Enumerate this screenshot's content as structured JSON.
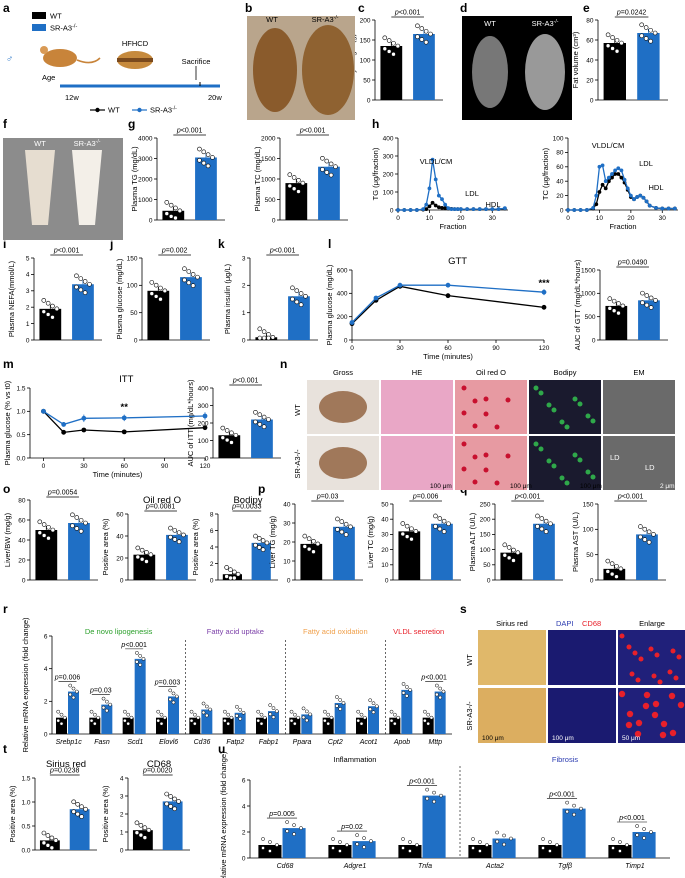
{
  "colors": {
    "wt": "#000000",
    "ko": "#1f6fc5",
    "accent_red": "#e8202a"
  },
  "panel_letters": [
    "a",
    "b",
    "c",
    "d",
    "e",
    "f",
    "g",
    "h",
    "i",
    "j",
    "k",
    "l",
    "m",
    "n",
    "o",
    "p",
    "q",
    "r",
    "s",
    "t",
    "u"
  ],
  "legend": {
    "wt": "WT",
    "ko": "SR-A3",
    "ko_sup": "-/-"
  },
  "scheme": {
    "diet": "HFHCD",
    "sacrifice": "Sacrifice",
    "age": "Age",
    "start": "12w",
    "end": "20w"
  },
  "photo_labels": {
    "wt": "WT",
    "ko": "SR-A3",
    "ko_sup": "-/-"
  },
  "histology": {
    "columns": [
      "Gross",
      "HE",
      "Oil red O",
      "Bodipy",
      "EM"
    ],
    "scale_100": "100 μm",
    "scale_2": "2 μm",
    "ld": "LD",
    "sirius_cols": [
      "Sirius red",
      "DAPI",
      "CD68",
      "Enlarge"
    ],
    "scale_50": "50 μm"
  },
  "charts": [
    {
      "id": "c",
      "type": "bar",
      "ylabel": "Body weight (g)",
      "ylim": [
        0,
        200
      ],
      "yticks": [
        "0",
        "50",
        "100",
        "150",
        "200"
      ],
      "values": [
        135,
        165
      ],
      "p": "p<0.001"
    },
    {
      "id": "e",
      "type": "bar",
      "ylabel": "Fat volume (cm³)",
      "ylim": [
        0,
        80
      ],
      "yticks": [
        "0",
        "20",
        "40",
        "60",
        "80"
      ],
      "values": [
        57,
        67
      ],
      "p": "p=0.0242"
    },
    {
      "id": "g1",
      "type": "bar",
      "ylabel": "Plasma TG (mg/dL)",
      "ylim": [
        0,
        4000
      ],
      "yticks": [
        "0",
        "1000",
        "2000",
        "3000",
        "4000"
      ],
      "values": [
        450,
        3050
      ],
      "p": "p<0.001"
    },
    {
      "id": "g2",
      "type": "bar",
      "ylabel": "Plasma TC (mg/dL)",
      "ylim": [
        0,
        2000
      ],
      "yticks": [
        "0",
        "500",
        "1000",
        "1500",
        "2000"
      ],
      "values": [
        900,
        1300
      ],
      "p": "p<0.001"
    },
    {
      "id": "i",
      "type": "bar",
      "ylabel": "Plasma NEFA(mmol/L)",
      "ylim": [
        0,
        5
      ],
      "yticks": [
        "0",
        "1",
        "2",
        "3",
        "4",
        "5"
      ],
      "values": [
        1.9,
        3.4
      ],
      "p": "p<0.001"
    },
    {
      "id": "j",
      "type": "bar",
      "ylabel": "Plasma glucose (mg/dL)",
      "ylim": [
        0,
        150
      ],
      "yticks": [
        "0",
        "50",
        "100",
        "150"
      ],
      "values": [
        90,
        115
      ],
      "p": "p=0.002"
    },
    {
      "id": "k",
      "type": "bar",
      "ylabel": "Plasma insulin (μg/L)",
      "ylim": [
        0,
        3
      ],
      "yticks": [
        "0",
        "1",
        "2",
        "3"
      ],
      "values": [
        0.1,
        1.6
      ],
      "p": "p<0.001"
    },
    {
      "id": "l2",
      "type": "bar",
      "ylabel": "AUC of GTT (mg/dL*hours)",
      "ylim": [
        0,
        1500
      ],
      "yticks": [
        "0",
        "500",
        "1000",
        "1500"
      ],
      "values": [
        730,
        850
      ],
      "p": "p=0.0490"
    },
    {
      "id": "m2",
      "type": "bar",
      "ylabel": "AUC of ITT (mg/dL*hours)",
      "ylim": [
        0,
        400
      ],
      "yticks": [
        "0",
        "100",
        "200",
        "300",
        "400"
      ],
      "values": [
        130,
        220
      ],
      "p": "p<0.001"
    },
    {
      "id": "o1",
      "type": "bar",
      "ylabel": "Liver/BW (mg/g)",
      "ylim": [
        0,
        80
      ],
      "yticks": [
        "0",
        "20",
        "40",
        "60",
        "80"
      ],
      "values": [
        50,
        57
      ],
      "p": "p=0.0054"
    },
    {
      "id": "o2",
      "type": "bar",
      "title": "Oil red O",
      "ylabel": "Positive area (%)",
      "ylim": [
        0,
        60
      ],
      "yticks": [
        "0",
        "20",
        "40",
        "60"
      ],
      "values": [
        23,
        41
      ],
      "p": "p=0.0081"
    },
    {
      "id": "o3",
      "type": "bar",
      "title": "Bodipy",
      "ylabel": "Positive area (%)",
      "ylim": [
        0,
        8
      ],
      "yticks": [
        "0",
        "2",
        "4",
        "6",
        "8"
      ],
      "values": [
        0.7,
        4.5
      ],
      "p": "p=0.0033"
    },
    {
      "id": "p1",
      "type": "bar",
      "ylabel": "Liver TG (mg/g)",
      "ylim": [
        0,
        40
      ],
      "yticks": [
        "0",
        "10",
        "20",
        "30",
        "40"
      ],
      "values": [
        19,
        28
      ],
      "p": "p=0.03"
    },
    {
      "id": "p2",
      "type": "bar",
      "ylabel": "Liver TC (mg/g)",
      "ylim": [
        0,
        50
      ],
      "yticks": [
        "0",
        "10",
        "20",
        "30",
        "40",
        "50"
      ],
      "values": [
        32,
        37
      ],
      "p": "p=0.006"
    },
    {
      "id": "q1",
      "type": "bar",
      "ylabel": "Plasma ALT (U/L)",
      "ylim": [
        0,
        250
      ],
      "yticks": [
        "0",
        "50",
        "100",
        "150",
        "200",
        "250"
      ],
      "values": [
        90,
        185
      ],
      "p": "p<0.001"
    },
    {
      "id": "q2",
      "type": "bar",
      "ylabel": "Plasma AST (U/L)",
      "ylim": [
        0,
        150
      ],
      "yticks": [
        "0",
        "50",
        "100",
        "150"
      ],
      "values": [
        22,
        90
      ],
      "p": "p<0.001"
    },
    {
      "id": "t1",
      "type": "bar",
      "title": "Sirius red",
      "ylabel": "Positive area (%)",
      "ylim": [
        0,
        1.5
      ],
      "yticks": [
        "0.0",
        "0.5",
        "1.0",
        "1.5"
      ],
      "values": [
        0.2,
        0.85
      ],
      "p": "p=0.0238"
    },
    {
      "id": "t2",
      "type": "bar",
      "title": "CD68",
      "ylabel": "Positive area (%)",
      "ylim": [
        0,
        4
      ],
      "yticks": [
        "0",
        "1",
        "2",
        "3",
        "4"
      ],
      "values": [
        1.1,
        2.7
      ],
      "p": "p=0.0020"
    }
  ],
  "chart_data": [
    {
      "type": "line",
      "id": "h1",
      "ylabel": "TG (μg/fraction)",
      "xlabel": "Fraction",
      "xlim": [
        0,
        35
      ],
      "xticks": [
        "0",
        "10",
        "20",
        "30"
      ],
      "ylim": [
        0,
        400
      ],
      "yticks": [
        "0",
        "100",
        "200",
        "300",
        "400"
      ],
      "labels": [
        "VLDL/CM",
        "LDL",
        "HDL"
      ],
      "series": [
        {
          "color": "ko",
          "x": [
            0,
            2,
            4,
            6,
            8,
            9,
            10,
            11,
            12,
            13,
            14,
            15,
            16,
            17,
            18,
            19,
            20,
            22,
            24,
            26,
            28,
            30,
            32,
            34
          ],
          "y": [
            0,
            0,
            0,
            0,
            5,
            30,
            120,
            280,
            170,
            80,
            60,
            30,
            10,
            5,
            5,
            5,
            5,
            5,
            5,
            5,
            5,
            5,
            5,
            10
          ]
        },
        {
          "color": "wt",
          "x": [
            0,
            2,
            4,
            6,
            8,
            9,
            10,
            11,
            12,
            13,
            14,
            15,
            16,
            17,
            18,
            19,
            20,
            22,
            24,
            26,
            28,
            30,
            32,
            34
          ],
          "y": [
            0,
            0,
            0,
            0,
            2,
            5,
            20,
            40,
            25,
            15,
            12,
            10,
            8,
            6,
            5,
            5,
            5,
            5,
            5,
            5,
            5,
            5,
            5,
            8
          ]
        }
      ]
    },
    {
      "type": "line",
      "id": "h2",
      "ylabel": "TC (μg/fraction)",
      "xlabel": "Fraction",
      "xlim": [
        0,
        35
      ],
      "xticks": [
        "0",
        "10",
        "20",
        "30"
      ],
      "ylim": [
        0,
        100
      ],
      "yticks": [
        "0",
        "20",
        "40",
        "60",
        "80",
        "100"
      ],
      "labels": [
        "VLDL/CM",
        "LDL",
        "HDL"
      ],
      "series": [
        {
          "color": "ko",
          "x": [
            0,
            2,
            4,
            6,
            8,
            9,
            10,
            11,
            12,
            13,
            14,
            15,
            16,
            17,
            18,
            19,
            20,
            21,
            22,
            23,
            24,
            25,
            26,
            28,
            30,
            32,
            34
          ],
          "y": [
            0,
            0,
            0,
            0,
            3,
            20,
            60,
            62,
            40,
            45,
            50,
            55,
            58,
            55,
            42,
            30,
            20,
            15,
            18,
            20,
            17,
            12,
            6,
            3,
            2,
            2,
            2
          ]
        },
        {
          "color": "wt",
          "x": [
            0,
            2,
            4,
            6,
            8,
            9,
            10,
            11,
            12,
            13,
            14,
            15,
            16,
            17,
            18,
            19,
            20,
            21,
            22,
            23,
            24,
            25,
            26,
            28,
            30,
            32,
            34
          ],
          "y": [
            0,
            0,
            0,
            0,
            2,
            8,
            25,
            35,
            30,
            40,
            45,
            50,
            50,
            45,
            38,
            28,
            18,
            15,
            18,
            20,
            17,
            12,
            6,
            3,
            2,
            2,
            2
          ]
        }
      ]
    },
    {
      "type": "line",
      "id": "l1",
      "title": "GTT",
      "ylabel": "Plasma glucose (mg/dL)",
      "xlabel": "Time (minutes)",
      "xlim": [
        0,
        120
      ],
      "xticks": [
        "0",
        "30",
        "60",
        "90",
        "120"
      ],
      "ylim": [
        0,
        600
      ],
      "yticks": [
        "0",
        "200",
        "400",
        "600"
      ],
      "sig": "***",
      "sig_x": 120,
      "series": [
        {
          "color": "ko",
          "x": [
            0,
            15,
            30,
            60,
            120
          ],
          "y": [
            150,
            360,
            470,
            470,
            410
          ],
          "err": [
            10,
            15,
            15,
            15,
            25
          ]
        },
        {
          "color": "wt",
          "x": [
            0,
            15,
            30,
            60,
            120
          ],
          "y": [
            140,
            340,
            460,
            380,
            280
          ],
          "err": [
            10,
            15,
            15,
            15,
            15
          ]
        }
      ]
    },
    {
      "type": "line",
      "id": "m1",
      "title": "ITT",
      "ylabel": "Plasma glucose (% vs t0)",
      "xlabel": "Time (minutes)",
      "xlim": [
        -10,
        120
      ],
      "xticks": [
        "0",
        "30",
        "60",
        "90",
        "120"
      ],
      "ylim": [
        0,
        1.5
      ],
      "yticks": [
        "0.0",
        "0.5",
        "1.0",
        "1.5"
      ],
      "sig": "**",
      "sig_x": 60,
      "series": [
        {
          "color": "ko",
          "x": [
            0,
            15,
            30,
            60,
            120
          ],
          "y": [
            1.0,
            0.72,
            0.85,
            0.86,
            0.9
          ],
          "err": [
            0.02,
            0.05,
            0.08,
            0.07,
            0.08
          ]
        },
        {
          "color": "wt",
          "x": [
            0,
            15,
            30,
            60,
            120
          ],
          "y": [
            1.0,
            0.55,
            0.6,
            0.56,
            0.65
          ],
          "err": [
            0.02,
            0.03,
            0.03,
            0.03,
            0.04
          ]
        }
      ]
    },
    {
      "type": "bar",
      "id": "r",
      "ylabel": "Relative mRNA expression (fold change)",
      "ylim": [
        0,
        6
      ],
      "yticks": [
        "0",
        "2",
        "4",
        "6"
      ],
      "groups": [
        "De novo lipogenesis",
        "Fatty acid uptake",
        "Fatty acid oxidation",
        "VLDL secretion"
      ],
      "group_colors": [
        "#2ca02c",
        "#7b3fa8",
        "#f0a04b",
        "#e8202a"
      ],
      "categories": [
        "Srebp1c",
        "Fasn",
        "Scd1",
        "Elovl6",
        "Cd36",
        "Fatp2",
        "Fabp1",
        "Ppara",
        "Cpt2",
        "Acot1",
        "Apob",
        "Mttp"
      ],
      "wt": [
        1,
        1,
        1,
        1,
        1,
        1,
        1,
        1,
        1,
        1,
        1,
        1
      ],
      "ko": [
        2.6,
        1.8,
        4.6,
        2.3,
        1.5,
        1.3,
        1.4,
        1.2,
        1.9,
        1.7,
        2.7,
        2.6
      ],
      "pvals": [
        [
          "p=0.006",
          0
        ],
        [
          "p=0.03",
          1
        ],
        [
          "p<0.001",
          2
        ],
        [
          "p=0.003",
          3
        ],
        [
          "p<0.001",
          11
        ]
      ],
      "ap_p": "p<0.001"
    },
    {
      "type": "bar",
      "id": "u",
      "ylabel": "Relative mRNA expression (fold change)",
      "ylim": [
        0,
        6
      ],
      "yticks": [
        "0",
        "2",
        "4",
        "6"
      ],
      "groups": [
        "Inflammation",
        "Fibrosis"
      ],
      "categories": [
        "Cd68",
        "Adgre1",
        "Tnfa",
        "Acta2",
        "Tgfβ",
        "Timp1"
      ],
      "wt": [
        1,
        1,
        1,
        1,
        1,
        1
      ],
      "ko": [
        2.3,
        1.3,
        4.8,
        1.5,
        3.8,
        2.0
      ],
      "pvals": [
        [
          "p=0.005",
          0
        ],
        [
          "p=0.02",
          1
        ],
        [
          "p<0.001",
          2
        ],
        [
          "p<0.001",
          4
        ],
        [
          "p<0.001",
          5
        ]
      ]
    }
  ]
}
